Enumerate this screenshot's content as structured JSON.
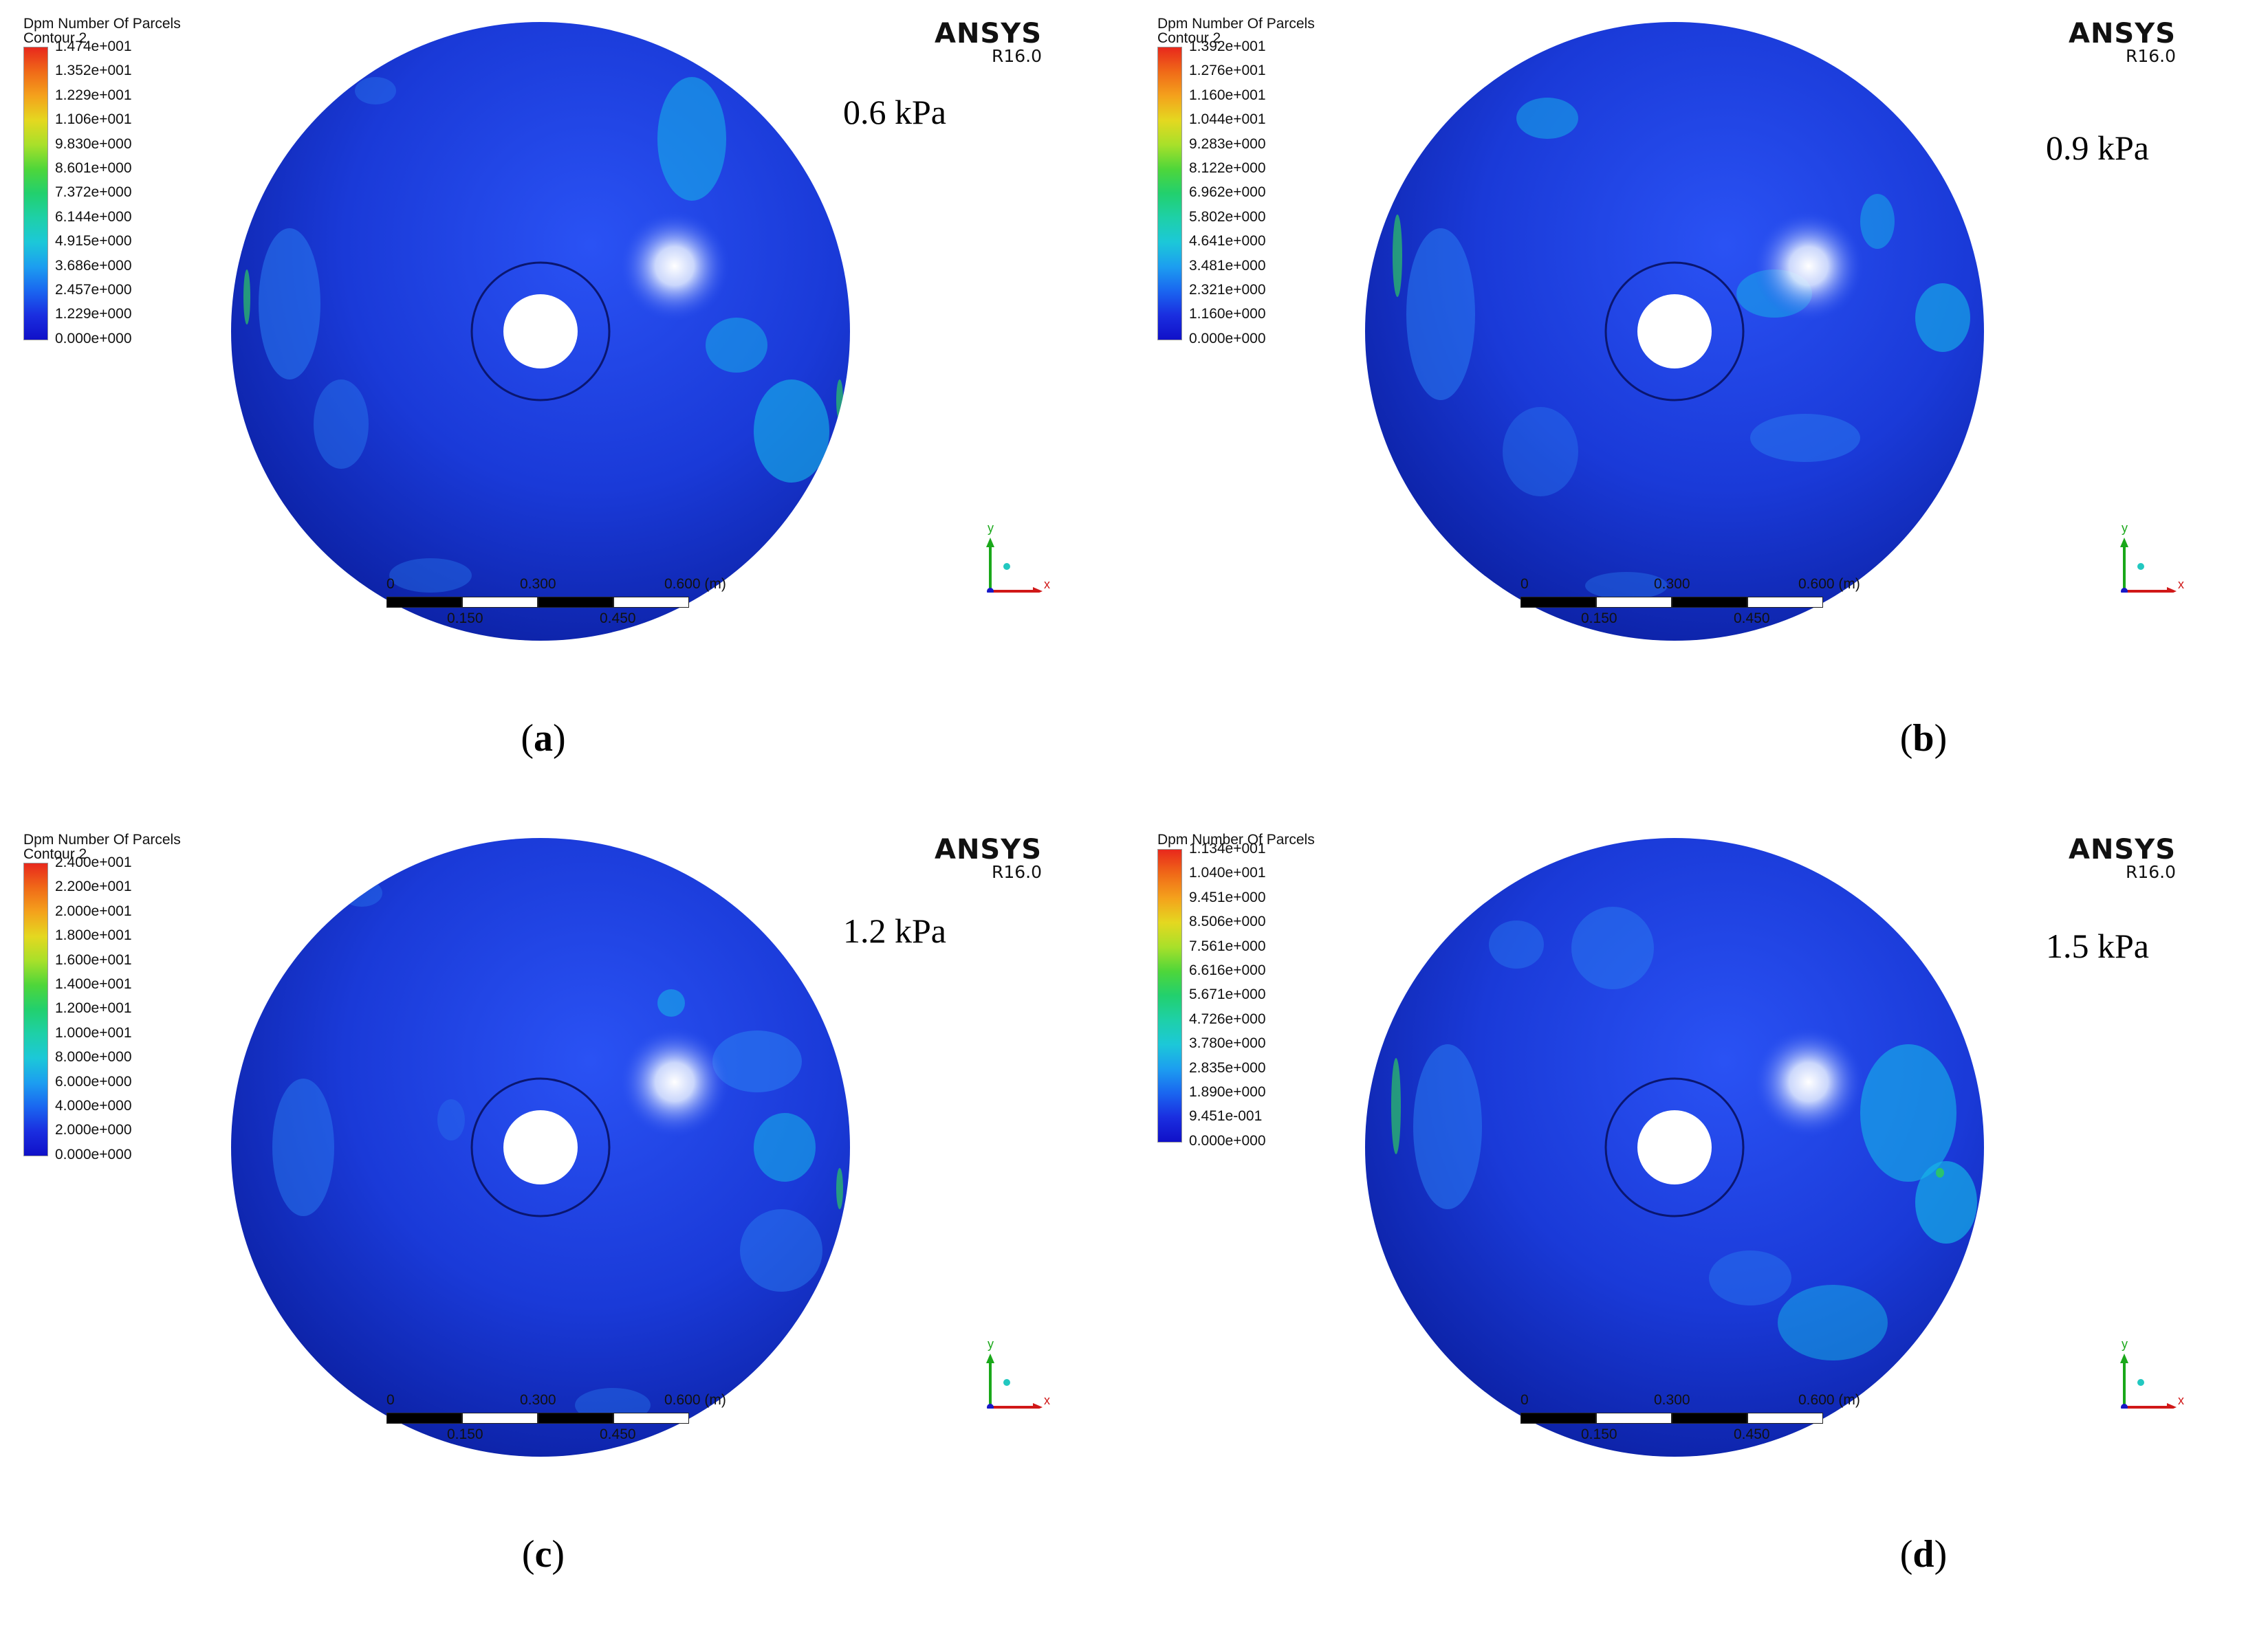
{
  "panels": [
    {
      "id": "a",
      "legend_title": "Dpm Number Of Parcels",
      "legend_subtitle": "Contour 2",
      "legend_values": [
        "1.474e+001",
        "1.352e+001",
        "1.229e+001",
        "1.106e+001",
        "9.830e+000",
        "8.601e+000",
        "7.372e+000",
        "6.144e+000",
        "4.915e+000",
        "3.686e+000",
        "2.457e+000",
        "1.229e+000",
        "0.000e+000"
      ],
      "brand": "ANSYS",
      "version": "R16.0",
      "pressure_label": "0.6 kPa",
      "caption_open": "(",
      "caption_letter": "a",
      "caption_close": ")"
    },
    {
      "id": "b",
      "legend_title": "Dpm Number Of Parcels",
      "legend_subtitle": "Contour 2",
      "legend_values": [
        "1.392e+001",
        "1.276e+001",
        "1.160e+001",
        "1.044e+001",
        "9.283e+000",
        "8.122e+000",
        "6.962e+000",
        "5.802e+000",
        "4.641e+000",
        "3.481e+000",
        "2.321e+000",
        "1.160e+000",
        "0.000e+000"
      ],
      "brand": "ANSYS",
      "version": "R16.0",
      "pressure_label": "0.9 kPa",
      "caption_open": "(",
      "caption_letter": "b",
      "caption_close": ")"
    },
    {
      "id": "c",
      "legend_title": "Dpm Number Of Parcels",
      "legend_subtitle": "Contour 2",
      "legend_values": [
        "2.400e+001",
        "2.200e+001",
        "2.000e+001",
        "1.800e+001",
        "1.600e+001",
        "1.400e+001",
        "1.200e+001",
        "1.000e+001",
        "8.000e+000",
        "6.000e+000",
        "4.000e+000",
        "2.000e+000",
        "0.000e+000"
      ],
      "brand": "ANSYS",
      "version": "R16.0",
      "pressure_label": "1.2 kPa",
      "caption_open": "(",
      "caption_letter": "c",
      "caption_close": ")"
    },
    {
      "id": "d",
      "legend_title": "Dpm Number Of Parcels",
      "legend_subtitle": "",
      "legend_values": [
        "1.134e+001",
        "1.040e+001",
        "9.451e+000",
        "8.506e+000",
        "7.561e+000",
        "6.616e+000",
        "5.671e+000",
        "4.726e+000",
        "3.780e+000",
        "2.835e+000",
        "1.890e+000",
        "9.451e-001",
        "0.000e+000"
      ],
      "brand": "ANSYS",
      "version": "R16.0",
      "pressure_label": "1.5 kPa",
      "caption_open": "(",
      "caption_letter": "d",
      "caption_close": ")"
    }
  ],
  "scale_bar": {
    "top_labels": [
      "0",
      "0.300",
      "0.600 (m)"
    ],
    "bottom_labels": [
      "0.150",
      "0.450"
    ]
  },
  "axes": {
    "x": "x",
    "y": "y"
  },
  "colors": {
    "sphere_base": "#1a3ad8",
    "sphere_dark": "#0a1e9e",
    "cyan_patch": "#16b8e8",
    "light_patch": "#2a7cf0",
    "green_edge": "#2ec862",
    "highlight": "#ffffff",
    "colorbar": [
      "#e8281c",
      "#f06a18",
      "#f4a21c",
      "#e4d820",
      "#a8e02a",
      "#4ed63a",
      "#22d06e",
      "#1ed0a8",
      "#1cc8d8",
      "#1c9ef0",
      "#1a66f0",
      "#1a2ee0",
      "#1010c8"
    ]
  }
}
